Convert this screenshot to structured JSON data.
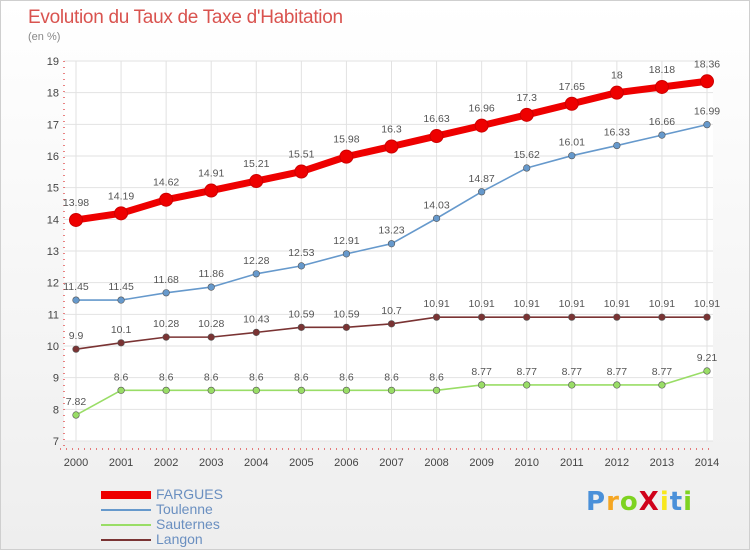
{
  "title": "Evolution du Taux de Taxe d'Habitation",
  "unit": "(en %)",
  "logo": {
    "text": "ProXiti",
    "colors": [
      "#4a90d9",
      "#f5a623",
      "#7ed321",
      "#d0021b",
      "#f8e71c",
      "#4a90d9",
      "#7ed321"
    ]
  },
  "chart_data": {
    "type": "line",
    "x": [
      "2000",
      "2001",
      "2002",
      "2003",
      "2004",
      "2005",
      "2006",
      "2007",
      "2008",
      "2009",
      "2010",
      "2011",
      "2012",
      "2013",
      "2014"
    ],
    "ylim": [
      7,
      19
    ],
    "yticks": [
      7,
      8,
      9,
      10,
      11,
      12,
      13,
      14,
      15,
      16,
      17,
      18,
      19
    ],
    "grid": true,
    "series": [
      {
        "name": "FARGUES",
        "color": "#ee0000",
        "values": [
          13.98,
          14.19,
          14.62,
          14.91,
          15.21,
          15.51,
          15.98,
          16.3,
          16.63,
          16.96,
          17.3,
          17.65,
          18,
          18.18,
          18.36
        ],
        "labels": [
          "13.98",
          "14.19",
          "14.62",
          "14.91",
          "15.21",
          "15.51",
          "15.98",
          "16.3",
          "16.63",
          "16.96",
          "17.3",
          "17.65",
          "18",
          "18.18",
          "18.36"
        ]
      },
      {
        "name": "Toulenne",
        "color": "#6699cc",
        "values": [
          11.45,
          11.45,
          11.68,
          11.86,
          12.28,
          12.53,
          12.91,
          13.23,
          14.03,
          14.87,
          15.62,
          16.01,
          16.33,
          16.66,
          16.99
        ],
        "labels": [
          "11.45",
          "11.45",
          "11.68",
          "11.86",
          "12.28",
          "12.53",
          "12.91",
          "13.23",
          "14.03",
          "14.87",
          "15.62",
          "16.01",
          "16.33",
          "16.66",
          "16.99"
        ]
      },
      {
        "name": "Sauternes",
        "color": "#99dd66",
        "values": [
          7.82,
          8.6,
          8.6,
          8.6,
          8.6,
          8.6,
          8.6,
          8.6,
          8.6,
          8.77,
          8.77,
          8.77,
          8.77,
          8.77,
          9.21
        ],
        "labels": [
          "7.82",
          "8.6",
          "8.6",
          "8.6",
          "8.6",
          "8.6",
          "8.6",
          "8.6",
          "8.6",
          "8.77",
          "8.77",
          "8.77",
          "8.77",
          "8.77",
          "9.21"
        ]
      },
      {
        "name": "Langon",
        "color": "#7a3333",
        "values": [
          9.9,
          10.1,
          10.28,
          10.28,
          10.43,
          10.59,
          10.59,
          10.7,
          10.91,
          10.91,
          10.91,
          10.91,
          10.91,
          10.91,
          10.91
        ],
        "labels": [
          "9.9",
          "10.1",
          "10.28",
          "10.28",
          "10.43",
          "10.59",
          "10.59",
          "10.7",
          "10.91",
          "10.91",
          "10.91",
          "10.91",
          "10.91",
          "10.91",
          "10.91"
        ]
      }
    ]
  }
}
